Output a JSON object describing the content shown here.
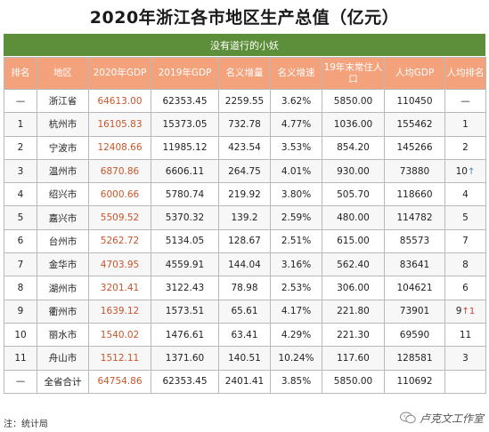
{
  "title": "2020年浙江各市地区生产总值（亿元）",
  "subtitle": "没有道行的小妖",
  "headers": [
    "排名",
    "地区",
    "2020年GDP",
    "2019年GDP",
    "名义增量",
    "名义增速",
    "19年末常住人口",
    "人均GDP",
    "人均排名"
  ],
  "rows": [
    {
      "rank": "—",
      "region": "浙江省",
      "gdp2020": "64613.00",
      "gdp2019": "62353.45",
      "increase": "2259.55",
      "growth": "3.62%",
      "population": "5850.00",
      "per_capita": "110450",
      "pc_rank": "—",
      "pc_rank_mark": ""
    },
    {
      "rank": "1",
      "region": "杭州市",
      "gdp2020": "16105.83",
      "gdp2019": "15373.05",
      "increase": "732.78",
      "growth": "4.77%",
      "population": "1036.00",
      "per_capita": "155462",
      "pc_rank": "1",
      "pc_rank_mark": ""
    },
    {
      "rank": "2",
      "region": "宁波市",
      "gdp2020": "12408.66",
      "gdp2019": "11985.12",
      "increase": "423.54",
      "growth": "3.53%",
      "population": "854.20",
      "per_capita": "145266",
      "pc_rank": "2",
      "pc_rank_mark": ""
    },
    {
      "rank": "3",
      "region": "温州市",
      "gdp2020": "6870.86",
      "gdp2019": "6606.11",
      "increase": "264.75",
      "growth": "4.01%",
      "population": "930.00",
      "per_capita": "73880",
      "pc_rank": "10",
      "pc_rank_mark": "↑",
      "pc_mark_color": "blue"
    },
    {
      "rank": "4",
      "region": "绍兴市",
      "gdp2020": "6000.66",
      "gdp2019": "5780.74",
      "increase": "219.92",
      "growth": "3.80%",
      "population": "505.70",
      "per_capita": "118660",
      "pc_rank": "4",
      "pc_rank_mark": ""
    },
    {
      "rank": "5",
      "region": "嘉兴市",
      "gdp2020": "5509.52",
      "gdp2019": "5370.32",
      "increase": "139.2",
      "growth": "2.59%",
      "population": "480.00",
      "per_capita": "114782",
      "pc_rank": "5",
      "pc_rank_mark": ""
    },
    {
      "rank": "6",
      "region": "台州市",
      "gdp2020": "5262.72",
      "gdp2019": "5134.05",
      "increase": "128.67",
      "growth": "2.51%",
      "population": "615.00",
      "per_capita": "85573",
      "pc_rank": "7",
      "pc_rank_mark": ""
    },
    {
      "rank": "7",
      "region": "金华市",
      "gdp2020": "4703.95",
      "gdp2019": "4559.91",
      "increase": "144.04",
      "growth": "3.16%",
      "population": "562.40",
      "per_capita": "83641",
      "pc_rank": "8",
      "pc_rank_mark": ""
    },
    {
      "rank": "8",
      "region": "湖州市",
      "gdp2020": "3201.41",
      "gdp2019": "3122.43",
      "increase": "78.98",
      "growth": "2.53%",
      "population": "306.00",
      "per_capita": "104621",
      "pc_rank": "6",
      "pc_rank_mark": ""
    },
    {
      "rank": "9",
      "region": "衢州市",
      "gdp2020": "1639.12",
      "gdp2019": "1573.51",
      "increase": "65.61",
      "growth": "4.17%",
      "population": "221.80",
      "per_capita": "73901",
      "pc_rank": "9",
      "pc_rank_mark": "↑1",
      "pc_mark_color": "red"
    },
    {
      "rank": "10",
      "region": "丽水市",
      "gdp2020": "1540.02",
      "gdp2019": "1476.61",
      "increase": "63.41",
      "growth": "4.29%",
      "population": "221.30",
      "per_capita": "69590",
      "pc_rank": "11",
      "pc_rank_mark": ""
    },
    {
      "rank": "11",
      "region": "舟山市",
      "gdp2020": "1512.11",
      "gdp2019": "1371.60",
      "increase": "140.51",
      "growth": "10.24%",
      "population": "117.60",
      "per_capita": "128581",
      "pc_rank": "3",
      "pc_rank_mark": ""
    },
    {
      "rank": "—",
      "region": "全省合计",
      "gdp2020": "64754.86",
      "gdp2019": "62353.45",
      "increase": "2401.41",
      "growth": "3.85%",
      "population": "5850.00",
      "per_capita": "110692",
      "pc_rank": "",
      "pc_rank_mark": ""
    }
  ],
  "footer_note": "注：统计局",
  "watermark": "卢克文工作室",
  "colors": {
    "subtitle_bg": "#5d8f3a",
    "header_bg": "#f3a27c",
    "gdp2020_text": "#c8562b",
    "mark_blue": "#3a86c8",
    "mark_red": "#d23b2b"
  }
}
